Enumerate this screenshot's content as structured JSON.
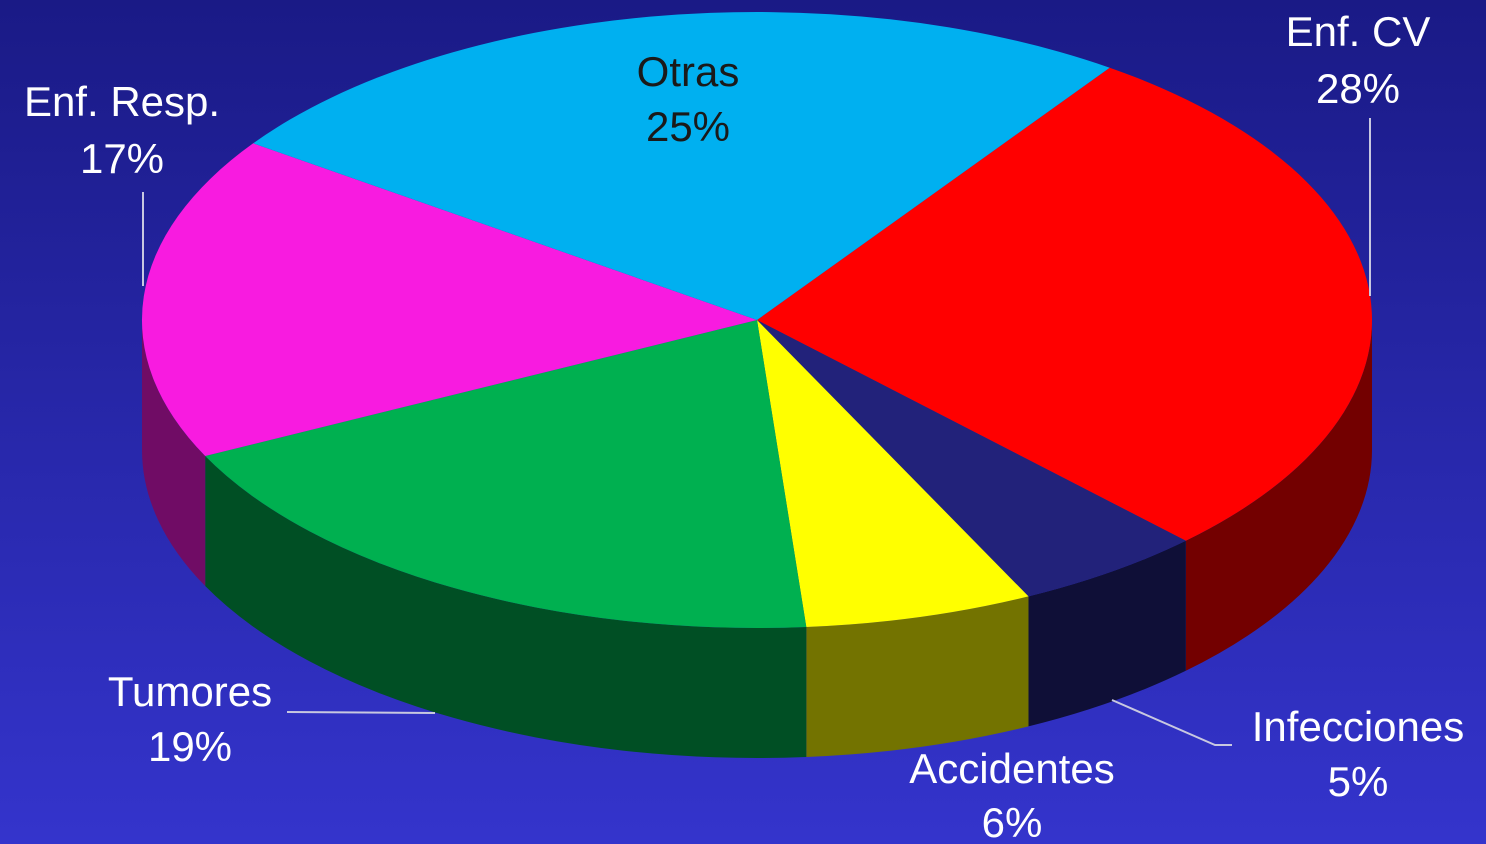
{
  "chart_data": {
    "type": "pie",
    "categories": [
      "Enf. CV",
      "Infecciones",
      "Accidentes",
      "Tumores",
      "Enf. Resp.",
      "Otras"
    ],
    "values": [
      28,
      5,
      6,
      19,
      17,
      25
    ],
    "value_labels": [
      "28%",
      "5%",
      "6%",
      "19%",
      "17%",
      "25%"
    ],
    "colors": [
      "#ff0000",
      "#22227a",
      "#ffff00",
      "#00b050",
      "#f81be0",
      "#00b0f0"
    ]
  }
}
